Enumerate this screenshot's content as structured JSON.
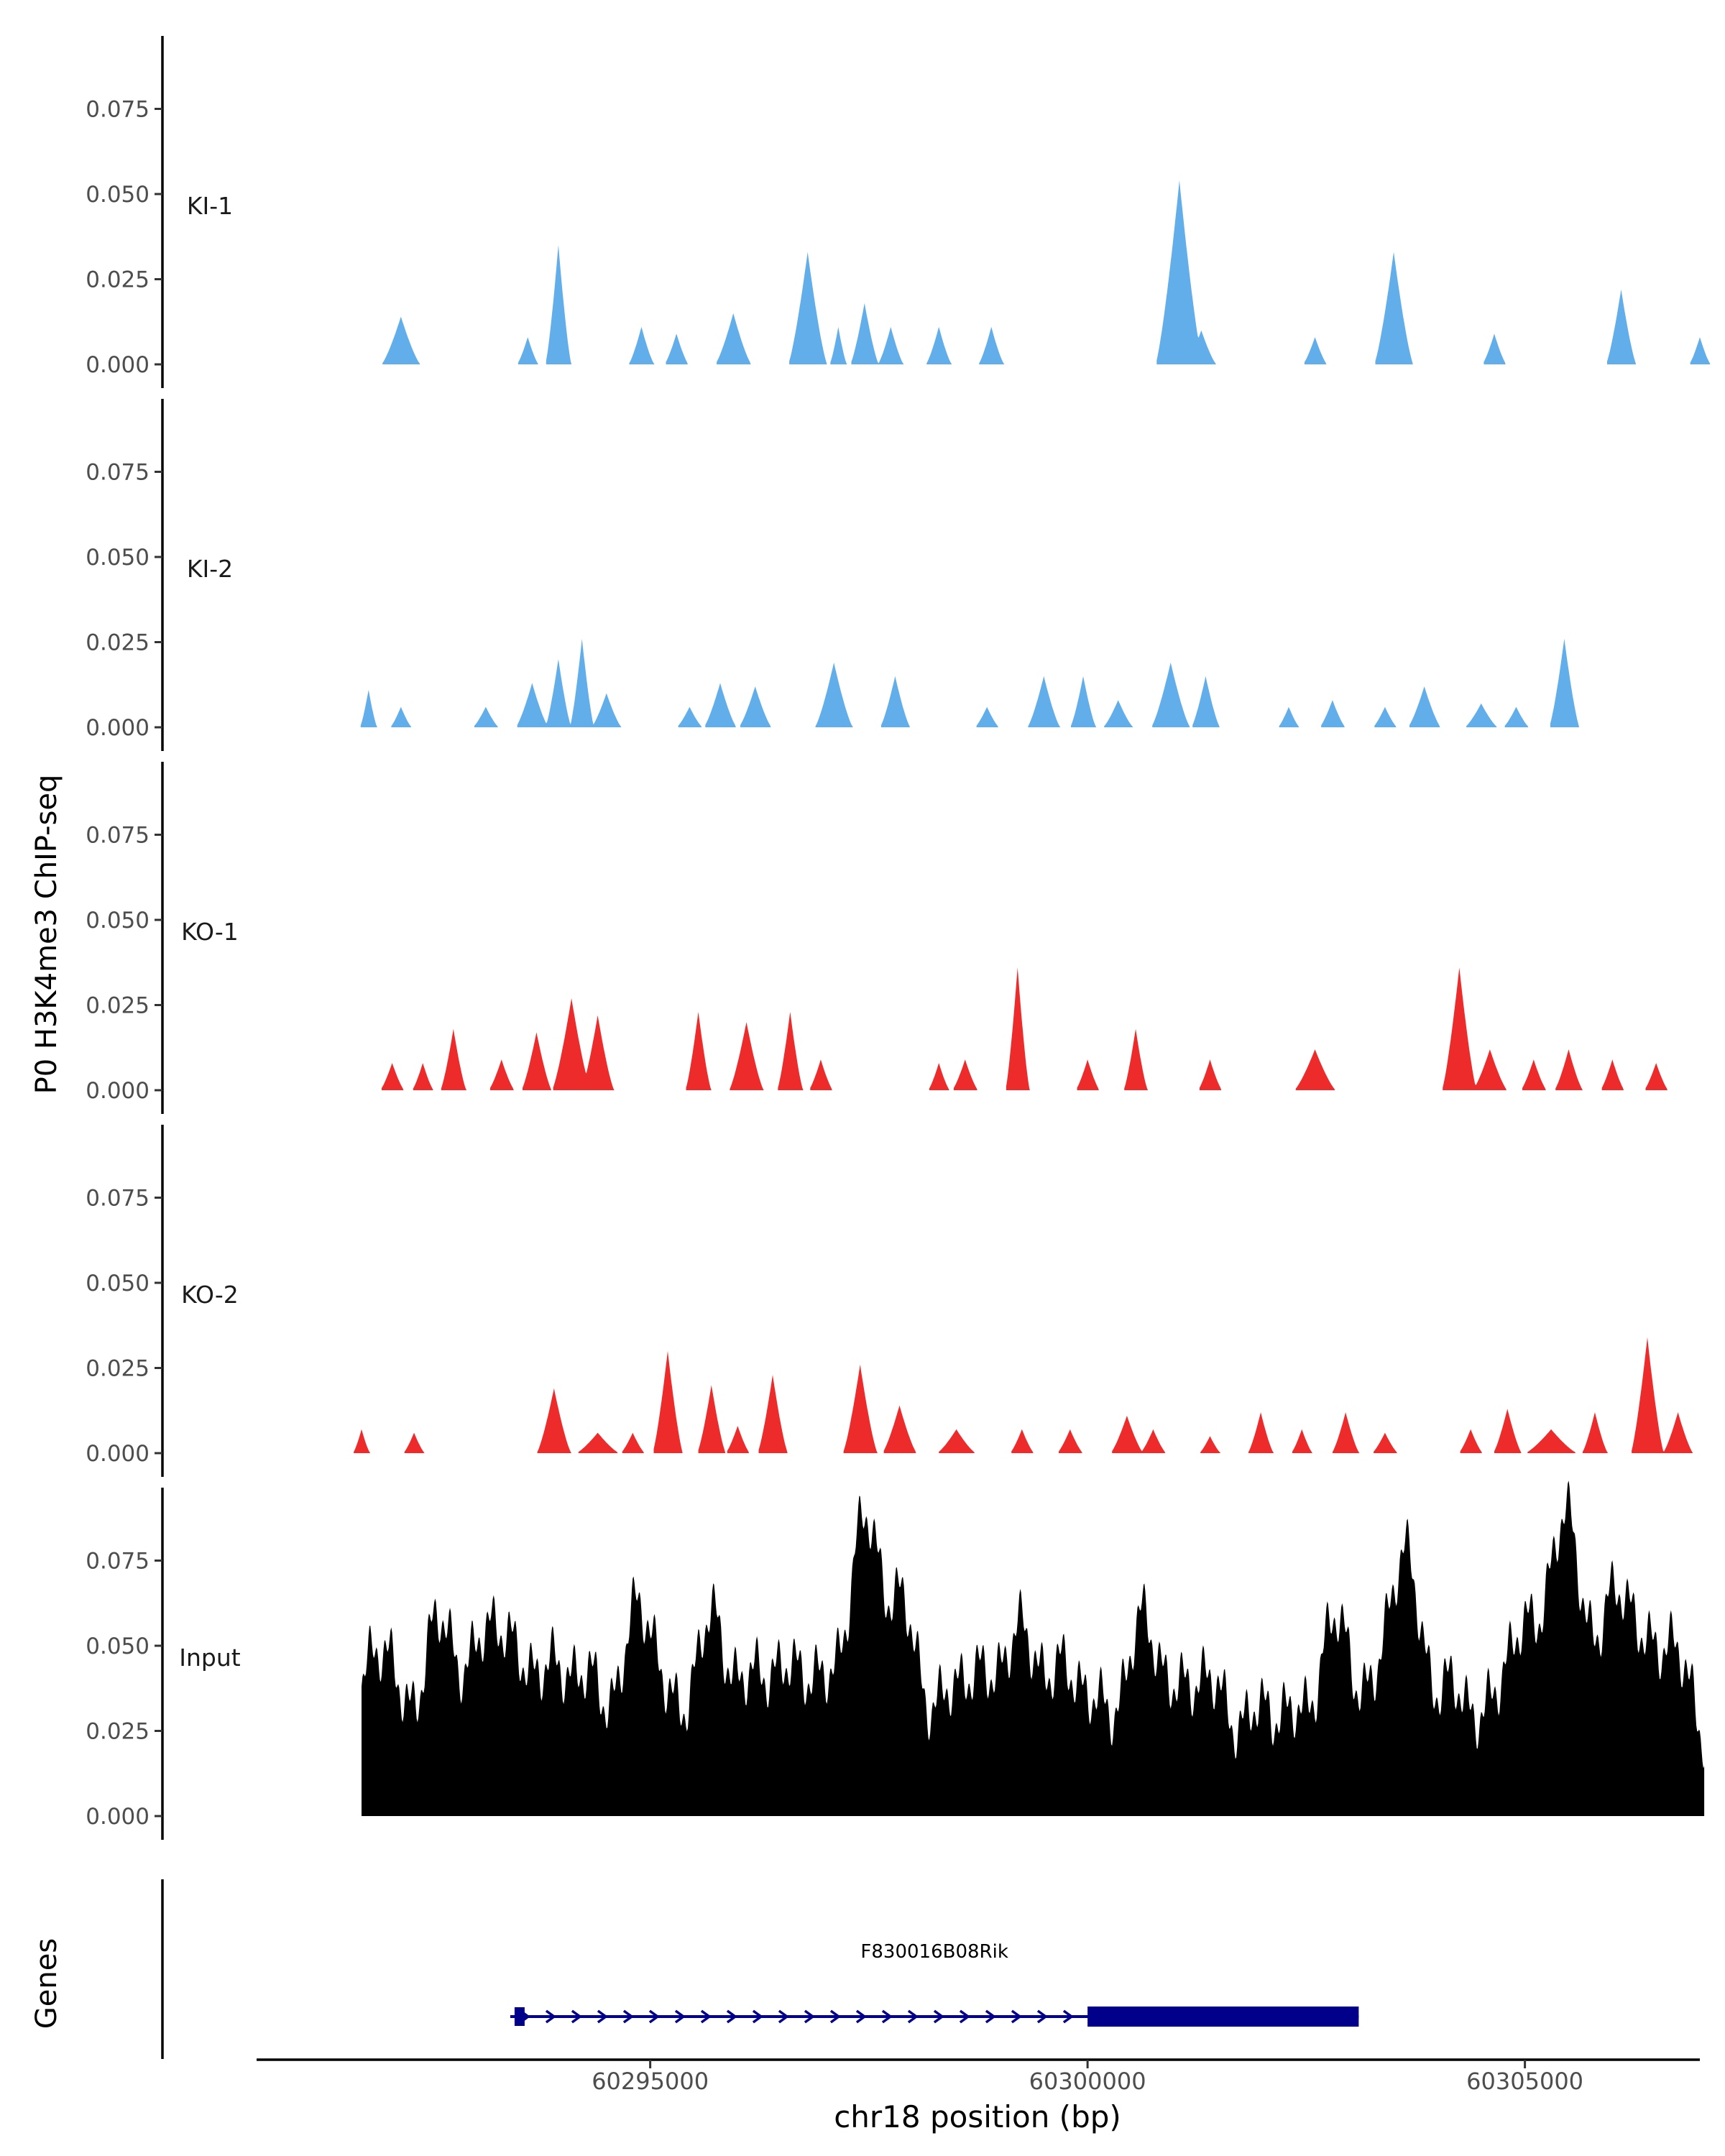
{
  "chart_data": {
    "type": "area",
    "title": "",
    "ylabel": "P0 H3K4me3 ChIP-seq",
    "xlabel": "chr18 position (bp)",
    "xlim": [
      60290500,
      60307000
    ],
    "ylim": [
      0,
      0.1
    ],
    "x_ticks": [
      60295000,
      60300000,
      60305000
    ],
    "x_tick_labels": [
      "60295000",
      "60300000",
      "60305000"
    ],
    "y_ticks": [
      0,
      0.025,
      0.05,
      0.075
    ],
    "y_tick_labels": [
      "0.000",
      "0.025",
      "0.050",
      "0.075"
    ],
    "tracks": [
      {
        "name": "KI-1",
        "color": "#62aeea",
        "peaks": [
          [
            60292150,
            0.014,
            450
          ],
          [
            60293600,
            0.008,
            250
          ],
          [
            60293950,
            0.035,
            300
          ],
          [
            60294900,
            0.011,
            300
          ],
          [
            60295300,
            0.009,
            280
          ],
          [
            60295950,
            0.015,
            420
          ],
          [
            60296800,
            0.033,
            450
          ],
          [
            60297150,
            0.011,
            200
          ],
          [
            60297450,
            0.018,
            330
          ],
          [
            60297750,
            0.011,
            300
          ],
          [
            60298300,
            0.011,
            300
          ],
          [
            60298900,
            0.011,
            300
          ],
          [
            60301050,
            0.054,
            550
          ],
          [
            60301300,
            0.01,
            350
          ],
          [
            60302600,
            0.008,
            280
          ],
          [
            60303500,
            0.033,
            450
          ],
          [
            60304650,
            0.009,
            280
          ],
          [
            60306100,
            0.022,
            350
          ],
          [
            60307000,
            0.008,
            250
          ]
        ]
      },
      {
        "name": "KI-2",
        "color": "#62aeea",
        "peaks": [
          [
            60291780,
            0.011,
            200
          ],
          [
            60292150,
            0.006,
            250
          ],
          [
            60293120,
            0.006,
            300
          ],
          [
            60293650,
            0.013,
            380
          ],
          [
            60293950,
            0.02,
            300
          ],
          [
            60294220,
            0.026,
            280
          ],
          [
            60294500,
            0.01,
            350
          ],
          [
            60295450,
            0.006,
            300
          ],
          [
            60295800,
            0.013,
            380
          ],
          [
            60296200,
            0.012,
            380
          ],
          [
            60297100,
            0.019,
            440
          ],
          [
            60297800,
            0.015,
            350
          ],
          [
            60298850,
            0.006,
            280
          ],
          [
            60299500,
            0.015,
            380
          ],
          [
            60299950,
            0.015,
            300
          ],
          [
            60300350,
            0.008,
            350
          ],
          [
            60300950,
            0.019,
            450
          ],
          [
            60301350,
            0.015,
            330
          ],
          [
            60302300,
            0.006,
            250
          ],
          [
            60302800,
            0.008,
            300
          ],
          [
            60303400,
            0.006,
            280
          ],
          [
            60303850,
            0.012,
            380
          ],
          [
            60304500,
            0.007,
            380
          ],
          [
            60304900,
            0.006,
            300
          ],
          [
            60305450,
            0.026,
            350
          ]
        ]
      },
      {
        "name": "KO-1",
        "color": "#ee2b2b",
        "peaks": [
          [
            60292050,
            0.008,
            280
          ],
          [
            60292400,
            0.008,
            250
          ],
          [
            60292750,
            0.018,
            300
          ],
          [
            60293300,
            0.009,
            300
          ],
          [
            60293700,
            0.017,
            350
          ],
          [
            60294100,
            0.027,
            450
          ],
          [
            60294400,
            0.022,
            380
          ],
          [
            60295550,
            0.023,
            300
          ],
          [
            60296100,
            0.02,
            400
          ],
          [
            60296600,
            0.023,
            300
          ],
          [
            60296950,
            0.009,
            280
          ],
          [
            60298300,
            0.008,
            250
          ],
          [
            60298600,
            0.009,
            300
          ],
          [
            60299200,
            0.036,
            280
          ],
          [
            60300000,
            0.009,
            280
          ],
          [
            60300550,
            0.018,
            280
          ],
          [
            60301400,
            0.009,
            280
          ],
          [
            60302600,
            0.012,
            480
          ],
          [
            60304250,
            0.036,
            400
          ],
          [
            60304600,
            0.012,
            400
          ],
          [
            60305100,
            0.009,
            300
          ],
          [
            60305500,
            0.012,
            330
          ],
          [
            60306000,
            0.009,
            280
          ],
          [
            60306500,
            0.008,
            280
          ]
        ]
      },
      {
        "name": "KO-2",
        "color": "#ee2b2b",
        "peaks": [
          [
            60291700,
            0.007,
            200
          ],
          [
            60292300,
            0.006,
            250
          ],
          [
            60293900,
            0.019,
            400
          ],
          [
            60294400,
            0.006,
            500
          ],
          [
            60294800,
            0.006,
            280
          ],
          [
            60295200,
            0.03,
            350
          ],
          [
            60295700,
            0.02,
            330
          ],
          [
            60296000,
            0.008,
            280
          ],
          [
            60296400,
            0.023,
            350
          ],
          [
            60297400,
            0.026,
            400
          ],
          [
            60297850,
            0.014,
            400
          ],
          [
            60298500,
            0.007,
            450
          ],
          [
            60299250,
            0.007,
            280
          ],
          [
            60299800,
            0.007,
            300
          ],
          [
            60300450,
            0.011,
            380
          ],
          [
            60300750,
            0.007,
            300
          ],
          [
            60301400,
            0.005,
            250
          ],
          [
            60301980,
            0.012,
            300
          ],
          [
            60302450,
            0.007,
            250
          ],
          [
            60302950,
            0.012,
            320
          ],
          [
            60303400,
            0.006,
            300
          ],
          [
            60304380,
            0.007,
            280
          ],
          [
            60304800,
            0.013,
            330
          ],
          [
            60305300,
            0.007,
            600
          ],
          [
            60305800,
            0.012,
            300
          ],
          [
            60306400,
            0.034,
            380
          ],
          [
            60306750,
            0.012,
            350
          ]
        ]
      },
      {
        "name": "Input",
        "color": "#000000",
        "baseline": 0.022,
        "peaks": [
          [
            60291900,
            0.03,
            400
          ],
          [
            60292600,
            0.035,
            450
          ],
          [
            60293200,
            0.035,
            450
          ],
          [
            60293700,
            0.02,
            500
          ],
          [
            60294200,
            0.02,
            500
          ],
          [
            60294900,
            0.04,
            450
          ],
          [
            60295700,
            0.035,
            450
          ],
          [
            60296300,
            0.02,
            500
          ],
          [
            60296800,
            0.02,
            500
          ],
          [
            60297450,
            0.063,
            450
          ],
          [
            60297900,
            0.035,
            400
          ],
          [
            60298600,
            0.02,
            500
          ],
          [
            60299200,
            0.03,
            500
          ],
          [
            60299800,
            0.02,
            600
          ],
          [
            60300650,
            0.035,
            450
          ],
          [
            60301300,
            0.02,
            500
          ],
          [
            60302100,
            0.01,
            600
          ],
          [
            60302850,
            0.035,
            450
          ],
          [
            60303600,
            0.055,
            450
          ],
          [
            60304200,
            0.015,
            500
          ],
          [
            60304900,
            0.03,
            400
          ],
          [
            60305450,
            0.065,
            500
          ],
          [
            60306100,
            0.045,
            450
          ],
          [
            60306650,
            0.03,
            450
          ]
        ]
      }
    ],
    "genes": {
      "label": "Genes",
      "items": [
        {
          "name": "F830016B08Rik",
          "start": 60293400,
          "end": 60303100,
          "thick_start": 60300000,
          "thick_end": 60303100,
          "strand": "+",
          "color": "#00008b"
        }
      ]
    }
  }
}
